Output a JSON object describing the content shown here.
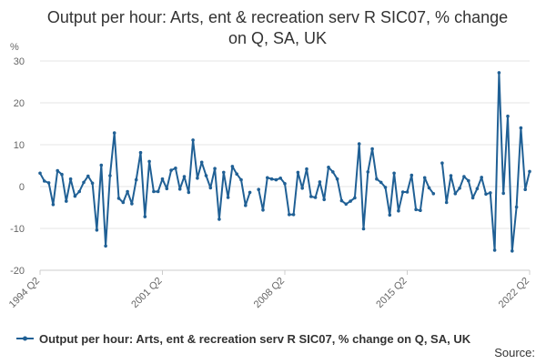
{
  "chart_data": {
    "type": "line",
    "title": "Output per hour: Arts, ent & recreation serv R SIC07, % change on Q, SA, UK",
    "ylabel": "%",
    "ylim": [
      -20,
      30
    ],
    "yticks": [
      -20,
      -10,
      0,
      10,
      20,
      30
    ],
    "xticks": [
      "1994 Q2",
      "2001 Q2",
      "2008 Q2",
      "2015 Q2",
      "2022 Q2"
    ],
    "grid": true,
    "legend_position": "bottom",
    "series": [
      {
        "name": "Output per hour: Arts, ent & recreation serv R SIC07, % change on Q, SA, UK",
        "color": "#206095",
        "x": [
          "1994 Q2",
          "1994 Q3",
          "1994 Q4",
          "1995 Q1",
          "1995 Q2",
          "1995 Q3",
          "1995 Q4",
          "1996 Q1",
          "1996 Q2",
          "1996 Q3",
          "1996 Q4",
          "1997 Q1",
          "1997 Q2",
          "1997 Q3",
          "1997 Q4",
          "1998 Q1",
          "1998 Q2",
          "1998 Q3",
          "1998 Q4",
          "1999 Q1",
          "1999 Q2",
          "1999 Q3",
          "1999 Q4",
          "2000 Q1",
          "2000 Q2",
          "2000 Q3",
          "2000 Q4",
          "2001 Q1",
          "2001 Q2",
          "2001 Q3",
          "2001 Q4",
          "2002 Q1",
          "2002 Q2",
          "2002 Q3",
          "2002 Q4",
          "2003 Q1",
          "2003 Q2",
          "2003 Q3",
          "2003 Q4",
          "2004 Q1",
          "2004 Q2",
          "2004 Q3",
          "2004 Q4",
          "2005 Q1",
          "2005 Q2",
          "2005 Q3",
          "2005 Q4",
          "2006 Q1",
          "2006 Q2",
          "2006 Q3",
          "2006 Q4",
          "2007 Q1",
          "2007 Q2",
          "2007 Q3",
          "2007 Q4",
          "2008 Q1",
          "2008 Q2",
          "2008 Q3",
          "2008 Q4",
          "2009 Q1",
          "2009 Q2",
          "2009 Q3",
          "2009 Q4",
          "2010 Q1",
          "2010 Q2",
          "2010 Q3",
          "2010 Q4",
          "2011 Q1",
          "2011 Q2",
          "2011 Q3",
          "2011 Q4",
          "2012 Q1",
          "2012 Q2",
          "2012 Q3",
          "2012 Q4",
          "2013 Q1",
          "2013 Q2",
          "2013 Q3",
          "2013 Q4",
          "2014 Q1",
          "2014 Q2",
          "2014 Q3",
          "2014 Q4",
          "2015 Q1",
          "2015 Q2",
          "2015 Q3",
          "2015 Q4",
          "2016 Q1",
          "2016 Q2",
          "2016 Q3",
          "2016 Q4",
          "2017 Q1",
          "2017 Q2",
          "2017 Q3",
          "2017 Q4",
          "2018 Q1",
          "2018 Q2",
          "2018 Q3",
          "2018 Q4",
          "2019 Q1",
          "2019 Q2",
          "2019 Q3",
          "2019 Q4",
          "2020 Q1",
          "2020 Q2",
          "2020 Q3",
          "2020 Q4",
          "2021 Q1",
          "2021 Q2",
          "2021 Q3",
          "2021 Q4",
          "2022 Q1",
          "2022 Q2"
        ],
        "values": [
          3.2,
          1.3,
          0.9,
          -4.3,
          3.8,
          2.9,
          -3.5,
          1.8,
          -2.3,
          -1.2,
          1.0,
          2.5,
          0.8,
          -10.4,
          5.1,
          -14.2,
          2.6,
          12.8,
          -2.8,
          -3.8,
          -1.2,
          -4.1,
          1.6,
          8.1,
          -7.2,
          6.0,
          -1.2,
          -1.2,
          1.8,
          -0.5,
          3.9,
          4.4,
          -0.6,
          2.4,
          -1.4,
          11.1,
          2.0,
          5.8,
          2.6,
          -0.3,
          4.3,
          -7.8,
          3.4,
          -2.6,
          4.8,
          3.0,
          1.6,
          -4.5,
          -1.4,
          null,
          -0.7,
          -5.6,
          2.1,
          1.8,
          1.6,
          2.0,
          0.7,
          -6.7,
          -6.7,
          3.4,
          -0.4,
          4.2,
          -2.4,
          -2.6,
          1.1,
          -3.1,
          4.6,
          3.5,
          1.8,
          -3.4,
          -4.2,
          -3.5,
          -2.7,
          10.2,
          -10.1,
          3.5,
          9.0,
          1.8,
          1.0,
          -0.2,
          -6.8,
          3.2,
          -5.8,
          -1.3,
          -1.3,
          2.7,
          -5.5,
          -5.7,
          2.1,
          -0.3,
          -1.7,
          null,
          5.6,
          -3.8,
          2.6,
          -1.7,
          -0.4,
          2.4,
          1.4,
          -2.7,
          -0.5,
          2.2,
          -1.8,
          -1.5,
          -15.2,
          27.2,
          -1.6,
          16.8,
          -15.4,
          -4.9,
          14.0,
          -0.7,
          3.6
        ]
      }
    ]
  },
  "legend": {
    "label": "Output per hour: Arts, ent & recreation serv R SIC07, % change on Q, SA, UK"
  },
  "footer": {
    "source_label": "Source:"
  }
}
